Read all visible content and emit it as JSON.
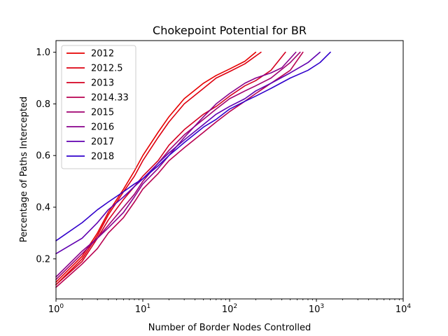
{
  "chart_data": {
    "type": "line",
    "title": "Chokepoint Potential for BR",
    "xlabel": "Number of Border Nodes Controlled",
    "ylabel": "Percentage of Paths Intercepted",
    "x_scale": "log",
    "xlim": [
      1,
      10000
    ],
    "ylim": [
      0.045,
      1.045
    ],
    "x_ticks": [
      {
        "value": 1,
        "base": "10",
        "exp": "0"
      },
      {
        "value": 10,
        "base": "10",
        "exp": "1"
      },
      {
        "value": 100,
        "base": "10",
        "exp": "2"
      },
      {
        "value": 1000,
        "base": "10",
        "exp": "3"
      },
      {
        "value": 10000,
        "base": "10",
        "exp": "4"
      }
    ],
    "y_ticks": [
      {
        "value": 0.2,
        "label": "0.2"
      },
      {
        "value": 0.4,
        "label": "0.4"
      },
      {
        "value": 0.6,
        "label": "0.6"
      },
      {
        "value": 0.8,
        "label": "0.8"
      },
      {
        "value": 1.0,
        "label": "1.0"
      }
    ],
    "grid": false,
    "legend_position": "top-left",
    "series": [
      {
        "name": "2012",
        "color": "#e60000",
        "x": [
          1,
          2,
          3,
          4,
          6,
          8,
          10,
          15,
          20,
          30,
          50,
          70,
          100,
          150,
          200
        ],
        "y": [
          0.11,
          0.21,
          0.3,
          0.38,
          0.47,
          0.54,
          0.6,
          0.69,
          0.75,
          0.82,
          0.88,
          0.91,
          0.935,
          0.965,
          1.0
        ]
      },
      {
        "name": "2012.5",
        "color": "#dd0010",
        "x": [
          1,
          2,
          3,
          4,
          6,
          8,
          10,
          15,
          20,
          30,
          50,
          70,
          100,
          150,
          230
        ],
        "y": [
          0.1,
          0.2,
          0.29,
          0.37,
          0.46,
          0.52,
          0.58,
          0.67,
          0.73,
          0.8,
          0.86,
          0.9,
          0.925,
          0.955,
          1.0
        ]
      },
      {
        "name": "2013",
        "color": "#d40020",
        "x": [
          1,
          2,
          3,
          4,
          6,
          8,
          10,
          15,
          20,
          30,
          50,
          70,
          100,
          150,
          200,
          300,
          440
        ],
        "y": [
          0.1,
          0.19,
          0.28,
          0.35,
          0.43,
          0.48,
          0.52,
          0.58,
          0.64,
          0.7,
          0.76,
          0.79,
          0.83,
          0.87,
          0.89,
          0.93,
          1.0
        ]
      },
      {
        "name": "2014.33",
        "color": "#b80050",
        "x": [
          1,
          2,
          3,
          4,
          6,
          8,
          10,
          15,
          20,
          30,
          50,
          70,
          100,
          150,
          200,
          300,
          500,
          700
        ],
        "y": [
          0.09,
          0.18,
          0.24,
          0.3,
          0.36,
          0.42,
          0.47,
          0.53,
          0.58,
          0.63,
          0.69,
          0.73,
          0.77,
          0.81,
          0.84,
          0.88,
          0.93,
          1.0
        ]
      },
      {
        "name": "2015",
        "color": "#a00070",
        "x": [
          1,
          2,
          3,
          4,
          6,
          8,
          10,
          15,
          20,
          30,
          50,
          70,
          100,
          150,
          200,
          300,
          500,
          650
        ],
        "y": [
          0.12,
          0.22,
          0.28,
          0.33,
          0.4,
          0.45,
          0.5,
          0.57,
          0.62,
          0.68,
          0.74,
          0.78,
          0.82,
          0.85,
          0.87,
          0.9,
          0.96,
          1.0
        ]
      },
      {
        "name": "2016",
        "color": "#88008c",
        "x": [
          1,
          2,
          3,
          4,
          6,
          8,
          10,
          15,
          20,
          30,
          50,
          70,
          100,
          150,
          200,
          300,
          400,
          580
        ],
        "y": [
          0.13,
          0.23,
          0.28,
          0.32,
          0.38,
          0.44,
          0.49,
          0.55,
          0.6,
          0.67,
          0.75,
          0.8,
          0.84,
          0.88,
          0.9,
          0.92,
          0.94,
          1.0
        ]
      },
      {
        "name": "2017",
        "color": "#6000b0",
        "x": [
          1,
          2,
          3,
          4,
          6,
          8,
          10,
          15,
          20,
          30,
          50,
          70,
          100,
          150,
          200,
          300,
          500,
          800,
          1100
        ],
        "y": [
          0.22,
          0.28,
          0.34,
          0.39,
          0.44,
          0.48,
          0.51,
          0.57,
          0.61,
          0.66,
          0.72,
          0.76,
          0.79,
          0.82,
          0.85,
          0.88,
          0.92,
          0.96,
          1.0
        ]
      },
      {
        "name": "2018",
        "color": "#3000cc",
        "x": [
          1,
          2,
          3,
          4,
          6,
          8,
          10,
          15,
          20,
          30,
          50,
          70,
          100,
          150,
          200,
          300,
          500,
          800,
          1100,
          1450
        ],
        "y": [
          0.27,
          0.34,
          0.39,
          0.42,
          0.46,
          0.49,
          0.51,
          0.56,
          0.6,
          0.65,
          0.71,
          0.74,
          0.78,
          0.81,
          0.83,
          0.86,
          0.9,
          0.93,
          0.96,
          1.0
        ]
      }
    ]
  }
}
